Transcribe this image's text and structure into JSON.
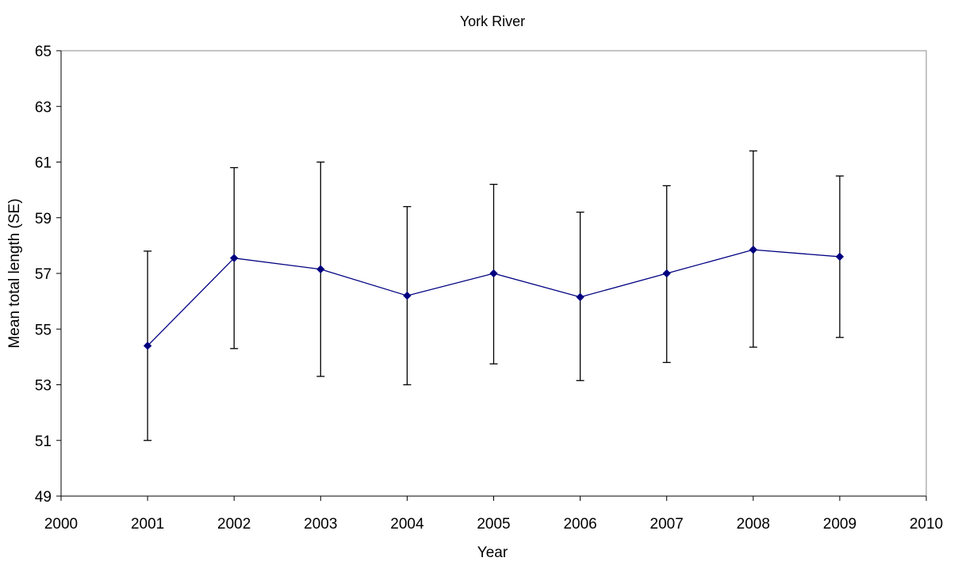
{
  "chart_data": {
    "type": "line",
    "title": "York River",
    "xlabel": "Year",
    "ylabel": "Mean total length (SE)",
    "xlim": [
      2000,
      2010
    ],
    "ylim": [
      49,
      65
    ],
    "x_ticks": [
      2000,
      2001,
      2002,
      2003,
      2004,
      2005,
      2006,
      2007,
      2008,
      2009,
      2010
    ],
    "y_ticks": [
      49,
      51,
      53,
      55,
      57,
      59,
      61,
      63,
      65
    ],
    "grid": false,
    "legend": "none",
    "series": [
      {
        "x": [
          2001,
          2002,
          2003,
          2004,
          2005,
          2006,
          2007,
          2008,
          2009
        ],
        "y": [
          54.4,
          57.55,
          57.15,
          56.2,
          57.0,
          56.15,
          57.0,
          57.85,
          57.6
        ],
        "error_low": [
          51.0,
          54.3,
          53.3,
          53.0,
          53.75,
          53.15,
          53.8,
          54.35,
          54.7
        ],
        "error_high": [
          57.8,
          60.8,
          61.0,
          59.4,
          60.2,
          59.2,
          60.15,
          61.4,
          60.5
        ],
        "color": "#000080",
        "marker": "diamond"
      }
    ],
    "colors": {
      "line": "#000080",
      "error_bars": "#000000",
      "plot_border": "#888888",
      "axis": "#000000"
    }
  }
}
